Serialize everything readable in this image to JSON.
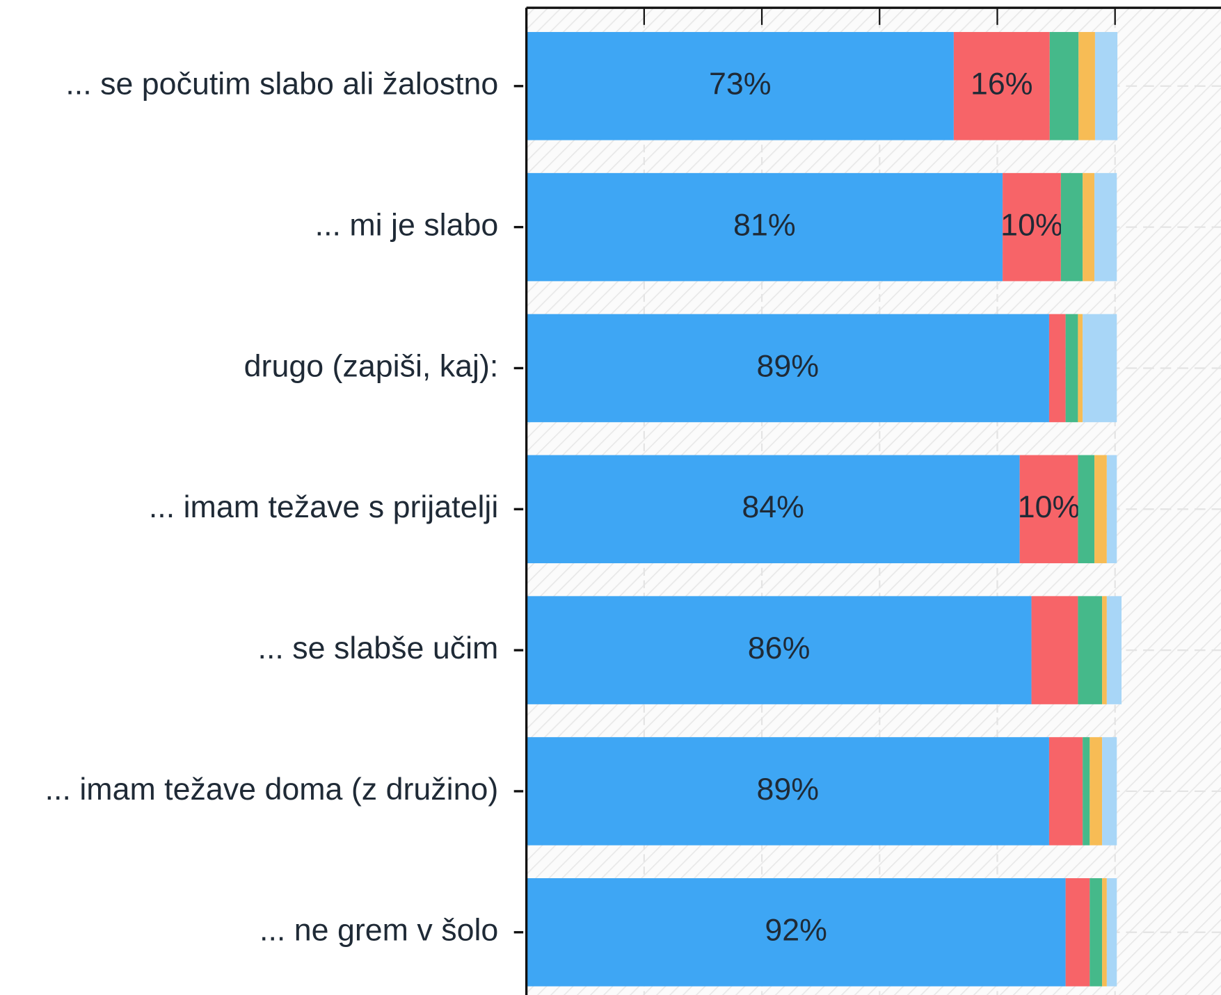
{
  "chart_data": {
    "type": "stacked_bar_horizontal",
    "categories": [
      "... se počutim slabo ali žalostno",
      "... mi je slabo",
      "drugo (zapiši, kaj):",
      "... imam težave s prijatelji",
      "... se slabše učim",
      "... imam težave doma (z družino)",
      "... ne grem v šolo"
    ],
    "series": [
      {
        "color": "#3ea6f4",
        "values": [
          72.6,
          80.9,
          88.8,
          83.8,
          85.8,
          88.8,
          91.6
        ],
        "value_labels": [
          "73%",
          "81%",
          "89%",
          "84%",
          "86%",
          "89%",
          "92%"
        ]
      },
      {
        "color": "#f76468",
        "values": [
          16.3,
          9.9,
          2.8,
          9.9,
          7.9,
          5.7,
          4.1
        ],
        "value_labels": [
          "16%",
          "10%",
          null,
          "10%",
          null,
          null,
          null
        ]
      },
      {
        "color": "#45b98a",
        "values": [
          4.9,
          3.7,
          2.1,
          2.8,
          4.1,
          1.2,
          2.1
        ]
      },
      {
        "color": "#f7bc55",
        "values": [
          2.8,
          2.0,
          0.8,
          2.1,
          0.8,
          2.1,
          0.8
        ]
      },
      {
        "color": "#a8d6f7",
        "values": [
          3.8,
          3.8,
          5.8,
          1.7,
          2.5,
          2.5,
          1.7
        ]
      }
    ],
    "xlim": [
      0,
      118
    ],
    "xticks": [
      0,
      20,
      40,
      60,
      80,
      100
    ],
    "grid": true
  }
}
